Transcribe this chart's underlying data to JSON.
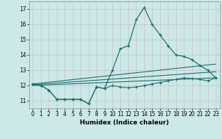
{
  "title": "",
  "xlabel": "Humidex (Indice chaleur)",
  "xlim": [
    -0.5,
    23.5
  ],
  "ylim": [
    10.5,
    17.5
  ],
  "yticks": [
    11,
    12,
    13,
    14,
    15,
    16,
    17
  ],
  "xticks": [
    0,
    1,
    2,
    3,
    4,
    5,
    6,
    7,
    8,
    9,
    10,
    11,
    12,
    13,
    14,
    15,
    16,
    17,
    18,
    19,
    20,
    21,
    22,
    23
  ],
  "bg_color": "#cce8e8",
  "grid_color": "#b8d8d8",
  "line_color": "#1a6b6b",
  "series_main": {
    "x": [
      0,
      1,
      2,
      3,
      4,
      5,
      6,
      7,
      8,
      9,
      10,
      11,
      12,
      13,
      14,
      15,
      16,
      17,
      18,
      19,
      20,
      21,
      22,
      23
    ],
    "y": [
      12.1,
      12.0,
      11.7,
      11.1,
      11.1,
      11.1,
      11.1,
      10.8,
      11.9,
      11.8,
      13.0,
      14.4,
      14.6,
      16.3,
      17.1,
      16.0,
      15.3,
      14.6,
      14.0,
      13.9,
      13.7,
      13.3,
      13.0,
      12.5
    ]
  },
  "series_reg1": {
    "x": [
      0,
      23
    ],
    "y": [
      12.0,
      12.5
    ]
  },
  "series_reg2": {
    "x": [
      0,
      23
    ],
    "y": [
      12.05,
      12.9
    ]
  },
  "series_reg3": {
    "x": [
      0,
      23
    ],
    "y": [
      12.1,
      13.4
    ]
  },
  "series_lower": {
    "x": [
      0,
      1,
      2,
      3,
      4,
      5,
      6,
      7,
      8,
      9,
      10,
      11,
      12,
      13,
      14,
      15,
      16,
      17,
      18,
      19,
      20,
      21,
      22,
      23
    ],
    "y": [
      12.1,
      12.0,
      11.7,
      11.1,
      11.1,
      11.1,
      11.1,
      10.8,
      11.9,
      11.8,
      12.0,
      11.9,
      11.85,
      11.9,
      12.0,
      12.1,
      12.2,
      12.3,
      12.4,
      12.5,
      12.45,
      12.4,
      12.3,
      12.5
    ]
  }
}
